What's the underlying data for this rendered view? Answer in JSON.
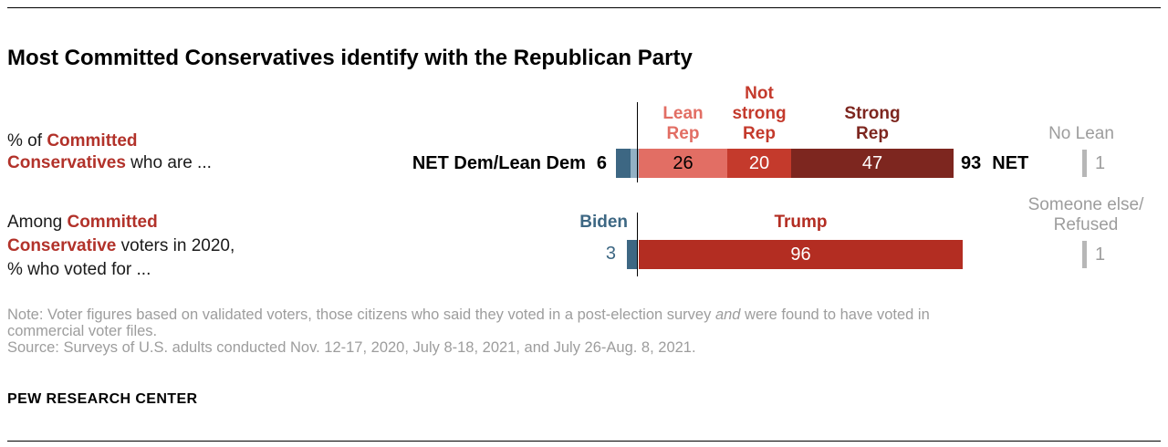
{
  "page": {
    "title": "Most Committed Conservatives identify with the Republican Party",
    "footer_brand": "PEW RESEARCH CENTER"
  },
  "row1": {
    "caption": {
      "line1_prefix": "% of ",
      "line1_bold": "Committed",
      "line2_bold": "Conservatives",
      "line2_suffix": " who are ..."
    },
    "bar_label": "NET Dem/Lean Dem",
    "bar_value": "6",
    "headers": {
      "lean": "Lean\nRep",
      "not_strong": "Not\nstrong\nRep",
      "strong": "Strong\nRep"
    },
    "values": {
      "lean": "26",
      "not_strong": "20",
      "strong": "47"
    },
    "net": {
      "value": "93",
      "label": "NET"
    },
    "aside": {
      "label": "No Lean",
      "value": "1"
    }
  },
  "row2": {
    "caption": {
      "line1_prefix": "Among ",
      "line1_bold": "Committed",
      "line2_bold": "Conservative",
      "line2_suffix": " voters in 2020,",
      "line3": "% who voted for ..."
    },
    "biden_label": "Biden",
    "biden_value": "3",
    "trump_label": "Trump",
    "trump_value": "96",
    "aside": {
      "label": "Someone else/\nRefused",
      "value": "1"
    }
  },
  "footer": {
    "note_prefix": "Note: Voter figures based on validated voters, those citizens who said they voted in a post-election survey ",
    "note_italic": "and",
    "note_suffix": " were found to have voted in",
    "note_line2": "commercial voter files.",
    "source": "Source: Surveys of U.S. adults conducted Nov. 12-17, 2020, July 8-18, 2021, and July 26-Aug. 8, 2021."
  },
  "colors": {
    "dem_dark_blue": "#3d6783",
    "dem_light_blue": "#92b0c3",
    "lean_rep_salmon": "#e26e64",
    "not_strong_rep_red": "#c43a2c",
    "strong_rep_maroon": "#7d261f",
    "trump_red": "#b32d22",
    "accent_red_text": "#b2322a",
    "gray_text": "#9d9d9d",
    "tick_gray": "#b7b7b7"
  },
  "chart_data": {
    "type": "bar",
    "orientation": "horizontal-stacked",
    "title": "Most Committed Conservatives identify with the Republican Party",
    "unit": "%",
    "rows": [
      {
        "question": "% of Committed Conservatives who are ...",
        "series": [
          {
            "name": "NET Dem/Lean Dem",
            "value": 6
          },
          {
            "name": "Lean Rep",
            "value": 26
          },
          {
            "name": "Not strong Rep",
            "value": 20
          },
          {
            "name": "Strong Rep",
            "value": 47
          },
          {
            "name": "NET Rep",
            "value": 93
          },
          {
            "name": "No Lean",
            "value": 1
          }
        ]
      },
      {
        "question": "Among Committed Conservative voters in 2020, % who voted for ...",
        "series": [
          {
            "name": "Biden",
            "value": 3
          },
          {
            "name": "Trump",
            "value": 96
          },
          {
            "name": "Someone else/Refused",
            "value": 1
          }
        ]
      }
    ],
    "note": "Note: Voter figures based on validated voters, those citizens who said they voted in a post-election survey and were found to have voted in commercial voter files.",
    "source": "Source: Surveys of U.S. adults conducted Nov. 12-17, 2020, July 8-18, 2021, and July 26-Aug. 8, 2021."
  }
}
